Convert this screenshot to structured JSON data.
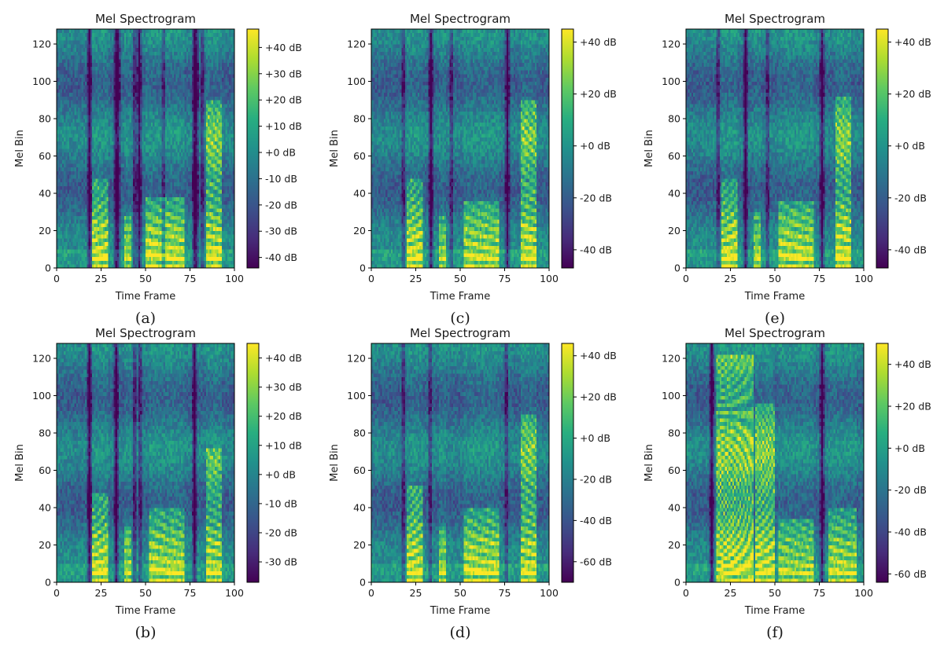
{
  "figure": {
    "panels": [
      {
        "id": "a",
        "caption": "(a)"
      },
      {
        "id": "c",
        "caption": "(c)"
      },
      {
        "id": "e",
        "caption": "(e)"
      },
      {
        "id": "b",
        "caption": "(b)"
      },
      {
        "id": "d",
        "caption": "(d)"
      },
      {
        "id": "f",
        "caption": "(f)"
      }
    ]
  },
  "chart_data": [
    {
      "panel": "a",
      "type": "heatmap",
      "title": "Mel Spectrogram",
      "xlabel": "Time Frame",
      "ylabel": "Mel Bin",
      "xlim": [
        0,
        100
      ],
      "ylim": [
        0,
        128
      ],
      "xticks": [
        0,
        25,
        50,
        75,
        100
      ],
      "yticks": [
        0,
        20,
        40,
        60,
        80,
        100,
        120
      ],
      "colormap": "viridis",
      "colorbar_range": [
        -44,
        47
      ],
      "colorbar_ticks": [
        40,
        30,
        20,
        10,
        0,
        -10,
        -20,
        -30,
        -40
      ],
      "colorbar_labels": [
        "+40 dB",
        "+30 dB",
        "+20 dB",
        "+10 dB",
        "+0 dB",
        "-10 dB",
        "-20 dB",
        "-30 dB",
        "-40 dB"
      ],
      "segments": [
        {
          "start": 20,
          "end": 29,
          "center": 24.5,
          "top": 47,
          "lean": -0.8,
          "strength": 1.0
        },
        {
          "start": 38,
          "end": 42,
          "center": 40,
          "top": 28,
          "lean": 0,
          "strength": 0.8
        },
        {
          "start": 50,
          "end": 72,
          "center": 66,
          "top": 38,
          "lean": 0.4,
          "strength": 0.95
        },
        {
          "start": 84,
          "end": 93,
          "center": 88,
          "top": 90,
          "lean": 0.45,
          "strength": 0.95
        }
      ],
      "dark_cols": [
        18,
        19,
        33,
        34,
        35,
        44,
        46,
        47,
        60,
        77,
        78,
        79,
        82
      ]
    },
    {
      "panel": "c",
      "type": "heatmap",
      "title": "Mel Spectrogram",
      "xlabel": "Time Frame",
      "ylabel": "Mel Bin",
      "xlim": [
        0,
        100
      ],
      "ylim": [
        0,
        128
      ],
      "xticks": [
        0,
        25,
        50,
        75,
        100
      ],
      "yticks": [
        0,
        20,
        40,
        60,
        80,
        100,
        120
      ],
      "colormap": "viridis",
      "colorbar_range": [
        -47,
        45
      ],
      "colorbar_ticks": [
        40,
        20,
        0,
        -20,
        -40
      ],
      "colorbar_labels": [
        "+40 dB",
        "+20 dB",
        "+0 dB",
        "-20 dB",
        "-40 dB"
      ],
      "segments": [
        {
          "start": 20,
          "end": 29,
          "center": 24.5,
          "top": 48,
          "lean": -0.8,
          "strength": 1.0
        },
        {
          "start": 38,
          "end": 42,
          "center": 40,
          "top": 28,
          "lean": 0,
          "strength": 0.8
        },
        {
          "start": 52,
          "end": 72,
          "center": 66,
          "top": 36,
          "lean": 0.4,
          "strength": 0.9
        },
        {
          "start": 84,
          "end": 93,
          "center": 88,
          "top": 90,
          "lean": 0.45,
          "strength": 0.95
        }
      ],
      "dark_cols": [
        18,
        33,
        34,
        45,
        76,
        77
      ]
    },
    {
      "panel": "e",
      "type": "heatmap",
      "title": "Mel Spectrogram",
      "xlabel": "Time Frame",
      "ylabel": "Mel Bin",
      "xlim": [
        0,
        100
      ],
      "ylim": [
        0,
        128
      ],
      "xticks": [
        0,
        25,
        50,
        75,
        100
      ],
      "yticks": [
        0,
        20,
        40,
        60,
        80,
        100,
        120
      ],
      "colormap": "viridis",
      "colorbar_range": [
        -47,
        45
      ],
      "colorbar_ticks": [
        40,
        20,
        0,
        -20,
        -40
      ],
      "colorbar_labels": [
        "+40 dB",
        "+20 dB",
        "+0 dB",
        "-20 dB",
        "-40 dB"
      ],
      "segments": [
        {
          "start": 20,
          "end": 29,
          "center": 24.5,
          "top": 47,
          "lean": -0.8,
          "strength": 1.0
        },
        {
          "start": 38,
          "end": 42,
          "center": 40,
          "top": 30,
          "lean": 0,
          "strength": 0.8
        },
        {
          "start": 52,
          "end": 72,
          "center": 66,
          "top": 36,
          "lean": 0.4,
          "strength": 0.9
        },
        {
          "start": 84,
          "end": 93,
          "center": 88,
          "top": 92,
          "lean": 0.45,
          "strength": 0.95
        }
      ],
      "dark_cols": [
        18,
        33,
        34,
        46,
        76,
        77
      ]
    },
    {
      "panel": "b",
      "type": "heatmap",
      "title": "Mel Spectrogram",
      "xlabel": "Time Frame",
      "ylabel": "Mel Bin",
      "xlim": [
        0,
        100
      ],
      "ylim": [
        0,
        128
      ],
      "xticks": [
        0,
        25,
        50,
        75,
        100
      ],
      "yticks": [
        0,
        20,
        40,
        60,
        80,
        100,
        120
      ],
      "colormap": "viridis",
      "colorbar_range": [
        -37,
        45
      ],
      "colorbar_ticks": [
        40,
        30,
        20,
        10,
        0,
        -10,
        -20,
        -30
      ],
      "colorbar_labels": [
        "+40 dB",
        "+30 dB",
        "+20 dB",
        "+10 dB",
        "+0 dB",
        "-10 dB",
        "-20 dB",
        "-30 dB"
      ],
      "segments": [
        {
          "start": 20,
          "end": 29,
          "center": 24.5,
          "top": 48,
          "lean": -0.8,
          "strength": 1.0
        },
        {
          "start": 38,
          "end": 42,
          "center": 40,
          "top": 30,
          "lean": 0,
          "strength": 0.8
        },
        {
          "start": 52,
          "end": 72,
          "center": 66,
          "top": 40,
          "lean": 0.4,
          "strength": 0.9
        },
        {
          "start": 84,
          "end": 93,
          "center": 88,
          "top": 72,
          "lean": 0.45,
          "strength": 0.9
        }
      ],
      "dark_cols": [
        18,
        19,
        33,
        34,
        44,
        47,
        77,
        78
      ]
    },
    {
      "panel": "d",
      "type": "heatmap",
      "title": "Mel Spectrogram",
      "xlabel": "Time Frame",
      "ylabel": "Mel Bin",
      "xlim": [
        0,
        100
      ],
      "ylim": [
        0,
        128
      ],
      "xticks": [
        0,
        25,
        50,
        75,
        100
      ],
      "yticks": [
        0,
        20,
        40,
        60,
        80,
        100,
        120
      ],
      "colormap": "viridis",
      "colorbar_range": [
        -70,
        46
      ],
      "colorbar_ticks": [
        40,
        20,
        0,
        -20,
        -40,
        -60
      ],
      "colorbar_labels": [
        "+40 dB",
        "+20 dB",
        "+0 dB",
        "-20 dB",
        "-40 dB",
        "-60 dB"
      ],
      "segments": [
        {
          "start": 20,
          "end": 29,
          "center": 24.5,
          "top": 52,
          "lean": -0.8,
          "strength": 1.0
        },
        {
          "start": 38,
          "end": 42,
          "center": 40,
          "top": 30,
          "lean": 0,
          "strength": 0.85
        },
        {
          "start": 52,
          "end": 72,
          "center": 66,
          "top": 40,
          "lean": 0.4,
          "strength": 0.95
        },
        {
          "start": 84,
          "end": 93,
          "center": 88,
          "top": 90,
          "lean": 0.45,
          "strength": 0.95
        }
      ],
      "dark_cols": [
        18,
        33,
        76
      ]
    },
    {
      "panel": "f",
      "type": "heatmap",
      "title": "Mel Spectrogram",
      "xlabel": "Time Frame",
      "ylabel": "Mel Bin",
      "xlim": [
        0,
        100
      ],
      "ylim": [
        0,
        128
      ],
      "xticks": [
        0,
        25,
        50,
        75,
        100
      ],
      "yticks": [
        0,
        20,
        40,
        60,
        80,
        100,
        120
      ],
      "colormap": "viridis",
      "colorbar_range": [
        -64,
        50
      ],
      "colorbar_ticks": [
        40,
        20,
        0,
        -20,
        -40,
        -60
      ],
      "colorbar_labels": [
        "+40 dB",
        "+20 dB",
        "+0 dB",
        "-20 dB",
        "-40 dB",
        "-60 dB"
      ],
      "segments": [
        {
          "start": 17,
          "end": 38,
          "center": 27,
          "top": 122,
          "lean": -1.5,
          "strength": 1.0
        },
        {
          "start": 39,
          "end": 50,
          "center": 44,
          "top": 95,
          "lean": -1.0,
          "strength": 1.0
        },
        {
          "start": 52,
          "end": 72,
          "center": 60,
          "top": 34,
          "lean": 0.5,
          "strength": 0.8
        },
        {
          "start": 80,
          "end": 96,
          "center": 88,
          "top": 40,
          "lean": 0.4,
          "strength": 0.85
        }
      ],
      "dark_cols": [
        14,
        15,
        76,
        77
      ]
    }
  ]
}
